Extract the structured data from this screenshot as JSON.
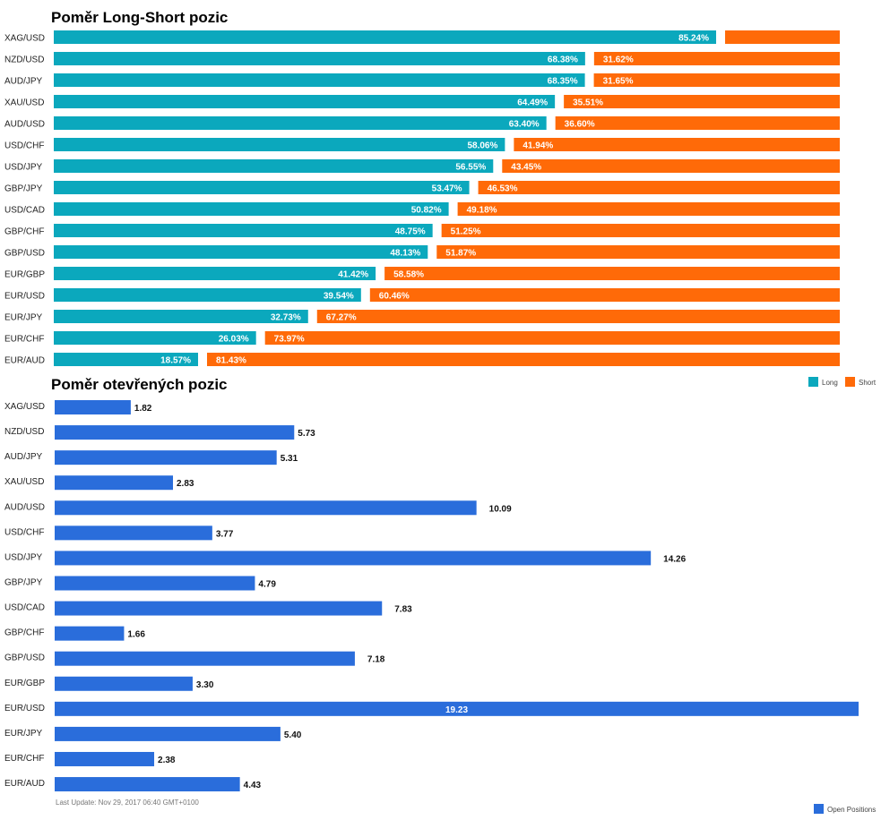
{
  "chart_data": [
    {
      "type": "bar",
      "orientation": "horizontal",
      "stacked": true,
      "title": "Poměr Long-Short pozic",
      "categories": [
        "XAG/USD",
        "NZD/USD",
        "AUD/JPY",
        "XAU/USD",
        "AUD/USD",
        "USD/CHF",
        "USD/JPY",
        "GBP/JPY",
        "USD/CAD",
        "GBP/CHF",
        "GBP/USD",
        "EUR/GBP",
        "EUR/USD",
        "EUR/JPY",
        "EUR/CHF",
        "EUR/AUD"
      ],
      "series": [
        {
          "name": "Long",
          "color": "#0ba8bd",
          "values": [
            85.24,
            68.38,
            68.35,
            64.49,
            63.4,
            58.06,
            56.55,
            53.47,
            50.82,
            48.75,
            48.13,
            41.42,
            39.54,
            32.73,
            26.03,
            18.57
          ],
          "labels": [
            "85.24%",
            "68.38%",
            "68.35%",
            "64.49%",
            "63.40%",
            "58.06%",
            "56.55%",
            "53.47%",
            "50.82%",
            "48.75%",
            "48.13%",
            "41.42%",
            "39.54%",
            "32.73%",
            "26.03%",
            "18.57%"
          ]
        },
        {
          "name": "Short",
          "color": "#ff6a08",
          "values": [
            14.76,
            31.62,
            31.65,
            35.51,
            36.6,
            41.94,
            43.45,
            46.53,
            49.18,
            51.25,
            51.87,
            58.58,
            60.46,
            67.27,
            73.97,
            81.43
          ],
          "labels": [
            "",
            "31.62%",
            "31.65%",
            "35.51%",
            "36.60%",
            "41.94%",
            "43.45%",
            "46.53%",
            "49.18%",
            "51.25%",
            "51.87%",
            "58.58%",
            "60.46%",
            "67.27%",
            "73.97%",
            "81.43%"
          ]
        }
      ],
      "xlim": [
        0,
        100
      ],
      "legend_position": "bottom-right"
    },
    {
      "type": "bar",
      "orientation": "horizontal",
      "title": "Poměr otevřených pozic",
      "categories": [
        "XAG/USD",
        "NZD/USD",
        "AUD/JPY",
        "XAU/USD",
        "AUD/USD",
        "USD/CHF",
        "USD/JPY",
        "GBP/JPY",
        "USD/CAD",
        "GBP/CHF",
        "GBP/USD",
        "EUR/GBP",
        "EUR/USD",
        "EUR/JPY",
        "EUR/CHF",
        "EUR/AUD"
      ],
      "series": [
        {
          "name": "Open Positions",
          "color": "#2a6ddb",
          "values": [
            1.82,
            5.73,
            5.31,
            2.83,
            10.09,
            3.77,
            14.26,
            4.79,
            7.83,
            1.66,
            7.18,
            3.3,
            19.23,
            5.4,
            2.38,
            4.43
          ],
          "labels": [
            "1.82",
            "5.73",
            "5.31",
            "2.83",
            "10.09",
            "3.77",
            "14.26",
            "4.79",
            "7.83",
            "1.66",
            "7.18",
            "3.30",
            "19.23",
            "5.40",
            "2.38",
            "4.43"
          ]
        }
      ],
      "xlim": [
        0,
        19.23
      ],
      "legend_position": "bottom-right"
    }
  ],
  "footer": {
    "last_update": "Last Update: Nov 29, 2017 06:40 GMT+0100"
  }
}
